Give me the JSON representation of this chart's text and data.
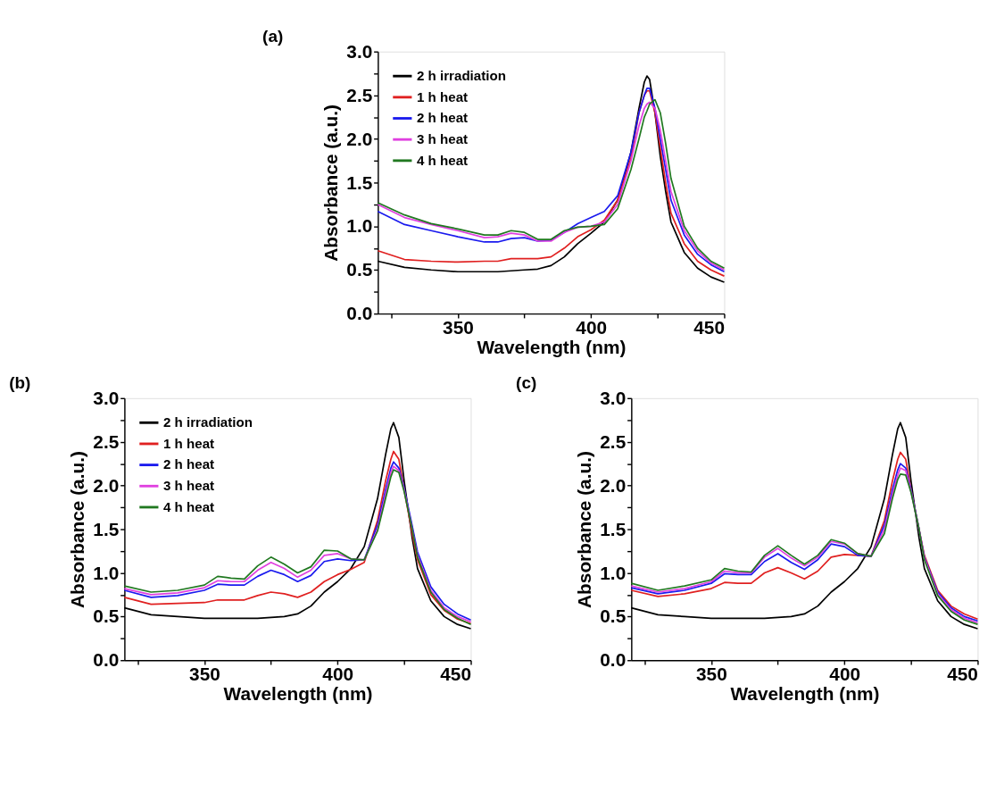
{
  "chart_data": [
    {
      "type": "line",
      "title": "(a)",
      "xlabel": "Wavelength (nm)",
      "ylabel": "Absorbance (a.u.)",
      "legend": "top left",
      "grid": false,
      "xlim": [
        320,
        450
      ],
      "xticks": [
        {
          "value": 325,
          "label": null
        },
        350,
        {
          "value": 375,
          "label": null
        },
        400,
        {
          "value": 425,
          "label": null
        },
        450
      ],
      "ylim": [
        0,
        3
      ],
      "yticks": [
        {
          "value": 0,
          "label": "0.0"
        },
        {
          "value": 0.25,
          "label": null
        },
        {
          "value": 0.5,
          "label": "0.5"
        },
        {
          "value": 0.75,
          "label": null
        },
        {
          "value": 1,
          "label": "1.0"
        },
        {
          "value": 1.25,
          "label": null
        },
        {
          "value": 1.5,
          "label": "1.5"
        },
        {
          "value": 1.75,
          "label": null
        },
        {
          "value": 2,
          "label": "2.0"
        },
        {
          "value": 2.25,
          "label": null
        },
        {
          "value": 2.5,
          "label": "2.5"
        },
        {
          "value": 2.75,
          "label": null
        },
        {
          "value": 3,
          "label": "3.0"
        }
      ],
      "x": [
        320,
        330,
        340,
        350,
        360,
        365,
        370,
        375,
        380,
        385,
        390,
        395,
        400,
        405,
        410,
        415,
        418,
        420,
        421,
        422,
        424,
        426,
        428,
        430,
        435,
        440,
        445,
        450
      ],
      "series": [
        {
          "name": "2 h irradiation",
          "color": "#000000",
          "values": [
            0.6,
            0.53,
            0.5,
            0.48,
            0.48,
            0.48,
            0.49,
            0.5,
            0.51,
            0.55,
            0.65,
            0.8,
            0.92,
            1.05,
            1.3,
            1.85,
            2.35,
            2.65,
            2.72,
            2.68,
            2.3,
            1.8,
            1.4,
            1.05,
            0.7,
            0.52,
            0.42,
            0.36
          ]
        },
        {
          "name": "1 h heat",
          "color": "#e02020",
          "values": [
            0.72,
            0.62,
            0.6,
            0.59,
            0.6,
            0.6,
            0.63,
            0.63,
            0.63,
            0.65,
            0.75,
            0.88,
            0.96,
            1.07,
            1.3,
            1.78,
            2.3,
            2.5,
            2.55,
            2.55,
            2.3,
            1.9,
            1.5,
            1.15,
            0.8,
            0.6,
            0.5,
            0.43
          ]
        },
        {
          "name": "2 h heat",
          "color": "#1a1aee",
          "values": [
            1.17,
            1.02,
            0.95,
            0.88,
            0.82,
            0.82,
            0.86,
            0.87,
            0.83,
            0.84,
            0.93,
            1.03,
            1.1,
            1.17,
            1.35,
            1.85,
            2.3,
            2.5,
            2.58,
            2.58,
            2.35,
            2.0,
            1.65,
            1.3,
            0.9,
            0.68,
            0.56,
            0.48
          ]
        },
        {
          "name": "3 h heat",
          "color": "#e040e0",
          "values": [
            1.25,
            1.1,
            1.02,
            0.95,
            0.87,
            0.88,
            0.92,
            0.9,
            0.83,
            0.83,
            0.93,
            0.99,
            1.0,
            1.05,
            1.25,
            1.75,
            2.15,
            2.35,
            2.4,
            2.42,
            2.35,
            2.1,
            1.75,
            1.4,
            0.95,
            0.72,
            0.58,
            0.5
          ]
        },
        {
          "name": "4  h heat",
          "color": "#207820",
          "values": [
            1.27,
            1.13,
            1.03,
            0.97,
            0.9,
            0.9,
            0.95,
            0.93,
            0.85,
            0.85,
            0.95,
            0.99,
            1.0,
            1.02,
            1.2,
            1.65,
            2.0,
            2.25,
            2.32,
            2.4,
            2.45,
            2.3,
            1.95,
            1.55,
            1.0,
            0.75,
            0.6,
            0.52
          ]
        }
      ]
    },
    {
      "type": "line",
      "title": "(b)",
      "xlabel": "Wavelength (nm)",
      "ylabel": "Absorbance (a.u.)",
      "legend": "top left",
      "grid": false,
      "xlim": [
        320,
        450
      ],
      "xticks": [
        {
          "value": 325,
          "label": null
        },
        350,
        {
          "value": 375,
          "label": null
        },
        400,
        {
          "value": 425,
          "label": null
        },
        450
      ],
      "ylim": [
        0,
        3
      ],
      "yticks": [
        {
          "value": 0,
          "label": "0.0"
        },
        {
          "value": 0.25,
          "label": null
        },
        {
          "value": 0.5,
          "label": "0.5"
        },
        {
          "value": 0.75,
          "label": null
        },
        {
          "value": 1,
          "label": "1.0"
        },
        {
          "value": 1.25,
          "label": null
        },
        {
          "value": 1.5,
          "label": "1.5"
        },
        {
          "value": 1.75,
          "label": null
        },
        {
          "value": 2,
          "label": "2.0"
        },
        {
          "value": 2.25,
          "label": null
        },
        {
          "value": 2.5,
          "label": "2.5"
        },
        {
          "value": 2.75,
          "label": null
        },
        {
          "value": 3,
          "label": "3.0"
        }
      ],
      "x": [
        320,
        330,
        340,
        350,
        355,
        360,
        365,
        370,
        375,
        380,
        385,
        390,
        395,
        400,
        405,
        410,
        415,
        418,
        420,
        421,
        423,
        425,
        428,
        430,
        435,
        440,
        445,
        450
      ],
      "series": [
        {
          "name": "2 h irradiation",
          "color": "#000000",
          "values": [
            0.6,
            0.52,
            0.5,
            0.48,
            0.48,
            0.48,
            0.48,
            0.48,
            0.49,
            0.5,
            0.53,
            0.62,
            0.78,
            0.9,
            1.05,
            1.3,
            1.85,
            2.35,
            2.65,
            2.72,
            2.55,
            2.05,
            1.4,
            1.05,
            0.68,
            0.5,
            0.41,
            0.36
          ]
        },
        {
          "name": "1 h heat",
          "color": "#e02020",
          "values": [
            0.72,
            0.64,
            0.65,
            0.66,
            0.69,
            0.69,
            0.69,
            0.74,
            0.78,
            0.76,
            0.72,
            0.78,
            0.9,
            0.98,
            1.04,
            1.12,
            1.6,
            2.05,
            2.3,
            2.39,
            2.3,
            1.95,
            1.45,
            1.15,
            0.75,
            0.57,
            0.47,
            0.42
          ]
        },
        {
          "name": "2 h heat",
          "color": "#1a1aee",
          "values": [
            0.8,
            0.72,
            0.74,
            0.8,
            0.87,
            0.86,
            0.86,
            0.96,
            1.03,
            0.98,
            0.9,
            0.97,
            1.13,
            1.16,
            1.14,
            1.15,
            1.55,
            1.95,
            2.2,
            2.27,
            2.2,
            1.97,
            1.54,
            1.24,
            0.84,
            0.64,
            0.53,
            0.46
          ]
        },
        {
          "name": "3 h heat",
          "color": "#e040e0",
          "values": [
            0.82,
            0.75,
            0.77,
            0.83,
            0.91,
            0.9,
            0.9,
            1.03,
            1.12,
            1.05,
            0.95,
            1.03,
            1.2,
            1.22,
            1.16,
            1.15,
            1.5,
            1.9,
            2.15,
            2.22,
            2.17,
            1.95,
            1.5,
            1.2,
            0.8,
            0.6,
            0.5,
            0.44
          ]
        },
        {
          "name": "4  h heat",
          "color": "#207820",
          "values": [
            0.85,
            0.78,
            0.8,
            0.86,
            0.96,
            0.94,
            0.93,
            1.08,
            1.18,
            1.1,
            1.0,
            1.07,
            1.26,
            1.25,
            1.16,
            1.15,
            1.48,
            1.85,
            2.1,
            2.18,
            2.15,
            1.93,
            1.5,
            1.18,
            0.78,
            0.58,
            0.48,
            0.41
          ]
        }
      ]
    },
    {
      "type": "line",
      "title": "(c)",
      "xlabel": "Wavelength (nm)",
      "ylabel": "Absorbance (a.u.)",
      "legend": "top left",
      "grid": false,
      "xlim": [
        320,
        450
      ],
      "xticks": [
        {
          "value": 325,
          "label": null
        },
        350,
        {
          "value": 375,
          "label": null
        },
        400,
        {
          "value": 425,
          "label": null
        },
        450
      ],
      "ylim": [
        0,
        3
      ],
      "yticks": [
        {
          "value": 0,
          "label": "0.0"
        },
        {
          "value": 0.25,
          "label": null
        },
        {
          "value": 0.5,
          "label": "0.5"
        },
        {
          "value": 0.75,
          "label": null
        },
        {
          "value": 1,
          "label": "1.0"
        },
        {
          "value": 1.25,
          "label": null
        },
        {
          "value": 1.5,
          "label": "1.5"
        },
        {
          "value": 1.75,
          "label": null
        },
        {
          "value": 2,
          "label": "2.0"
        },
        {
          "value": 2.25,
          "label": null
        },
        {
          "value": 2.5,
          "label": "2.5"
        },
        {
          "value": 2.75,
          "label": null
        },
        {
          "value": 3,
          "label": "3.0"
        }
      ],
      "x": [
        320,
        330,
        340,
        350,
        355,
        360,
        365,
        370,
        375,
        380,
        385,
        390,
        395,
        400,
        405,
        410,
        415,
        418,
        420,
        421,
        423,
        425,
        428,
        430,
        435,
        440,
        445,
        450
      ],
      "series": [
        {
          "name": "2 h irradiation",
          "color": "#000000",
          "values": [
            0.6,
            0.52,
            0.5,
            0.48,
            0.48,
            0.48,
            0.48,
            0.48,
            0.49,
            0.5,
            0.53,
            0.62,
            0.78,
            0.9,
            1.05,
            1.3,
            1.85,
            2.35,
            2.65,
            2.72,
            2.55,
            2.05,
            1.4,
            1.05,
            0.68,
            0.5,
            0.41,
            0.36
          ]
        },
        {
          "name": "1 h heat",
          "color": "#e02020",
          "values": [
            0.8,
            0.73,
            0.76,
            0.82,
            0.89,
            0.88,
            0.88,
            1.0,
            1.06,
            1.0,
            0.93,
            1.02,
            1.18,
            1.21,
            1.2,
            1.19,
            1.6,
            2.05,
            2.3,
            2.38,
            2.3,
            1.95,
            1.5,
            1.2,
            0.8,
            0.62,
            0.53,
            0.47
          ]
        },
        {
          "name": "2 h heat",
          "color": "#1a1aee",
          "values": [
            0.83,
            0.76,
            0.8,
            0.88,
            0.99,
            0.98,
            0.98,
            1.13,
            1.22,
            1.12,
            1.04,
            1.15,
            1.33,
            1.3,
            1.2,
            1.19,
            1.55,
            1.95,
            2.18,
            2.25,
            2.2,
            1.95,
            1.5,
            1.18,
            0.78,
            0.6,
            0.5,
            0.45
          ]
        },
        {
          "name": "3 h heat",
          "color": "#e040e0",
          "values": [
            0.85,
            0.78,
            0.82,
            0.9,
            1.02,
            1.0,
            1.0,
            1.18,
            1.28,
            1.17,
            1.08,
            1.18,
            1.36,
            1.33,
            1.22,
            1.19,
            1.5,
            1.9,
            2.12,
            2.2,
            2.17,
            1.93,
            1.5,
            1.17,
            0.76,
            0.58,
            0.48,
            0.43
          ]
        },
        {
          "name": "4  h heat",
          "color": "#207820",
          "values": [
            0.88,
            0.8,
            0.85,
            0.92,
            1.05,
            1.02,
            1.01,
            1.2,
            1.31,
            1.2,
            1.1,
            1.2,
            1.38,
            1.34,
            1.22,
            1.19,
            1.45,
            1.85,
            2.07,
            2.13,
            2.12,
            1.92,
            1.5,
            1.15,
            0.74,
            0.56,
            0.46,
            0.41
          ]
        }
      ]
    }
  ]
}
